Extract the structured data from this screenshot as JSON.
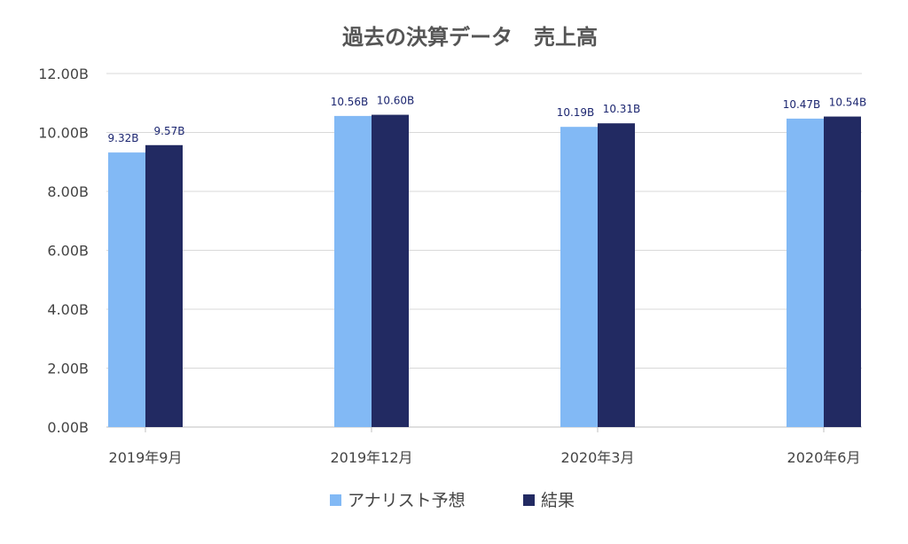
{
  "chart_data": {
    "type": "bar",
    "title": "過去の決算データ　売上高",
    "xlabel": "",
    "ylabel": "",
    "categories": [
      "2019年9月",
      "2019年12月",
      "2020年3月",
      "2020年6月"
    ],
    "series": [
      {
        "name": "アナリスト予想",
        "color": "#82b9f5",
        "values": [
          9.32,
          10.56,
          10.19,
          10.47
        ],
        "labels": [
          "9.32B",
          "10.56B",
          "10.19B",
          "10.47B"
        ]
      },
      {
        "name": "結果",
        "color": "#222a62",
        "values": [
          9.57,
          10.6,
          10.31,
          10.54
        ],
        "labels": [
          "9.57B",
          "10.60B",
          "10.31B",
          "10.54B"
        ]
      }
    ],
    "ylim": [
      0,
      12
    ],
    "yticks": [
      0,
      2,
      4,
      6,
      8,
      10,
      12
    ],
    "ytick_labels": [
      "0.00B",
      "2.00B",
      "4.00B",
      "6.00B",
      "8.00B",
      "10.00B",
      "12.00B"
    ],
    "grid": true,
    "legend": "bottom-center"
  }
}
